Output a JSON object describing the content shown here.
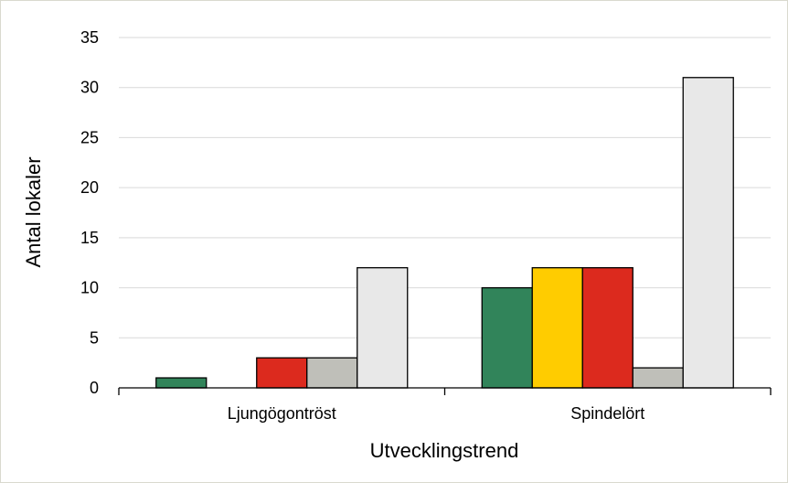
{
  "chart_data": {
    "type": "bar",
    "xlabel": "Utvecklingstrend",
    "ylabel": "Antal lokaler",
    "ylim": [
      0,
      35
    ],
    "yticks": [
      0,
      5,
      10,
      15,
      20,
      25,
      30,
      35
    ],
    "grid": "horizontal",
    "categories": [
      "Ljungögontröst",
      "Spindelört"
    ],
    "series": [
      {
        "color": "#31845a",
        "values": [
          1,
          10
        ]
      },
      {
        "color": "#ffcc00",
        "values": [
          0,
          12
        ]
      },
      {
        "color": "#dc2a1e",
        "values": [
          3,
          12
        ]
      },
      {
        "color": "#bfbfb9",
        "values": [
          3,
          2
        ]
      },
      {
        "color": "#e8e8e8",
        "values": [
          12,
          31
        ]
      }
    ]
  }
}
